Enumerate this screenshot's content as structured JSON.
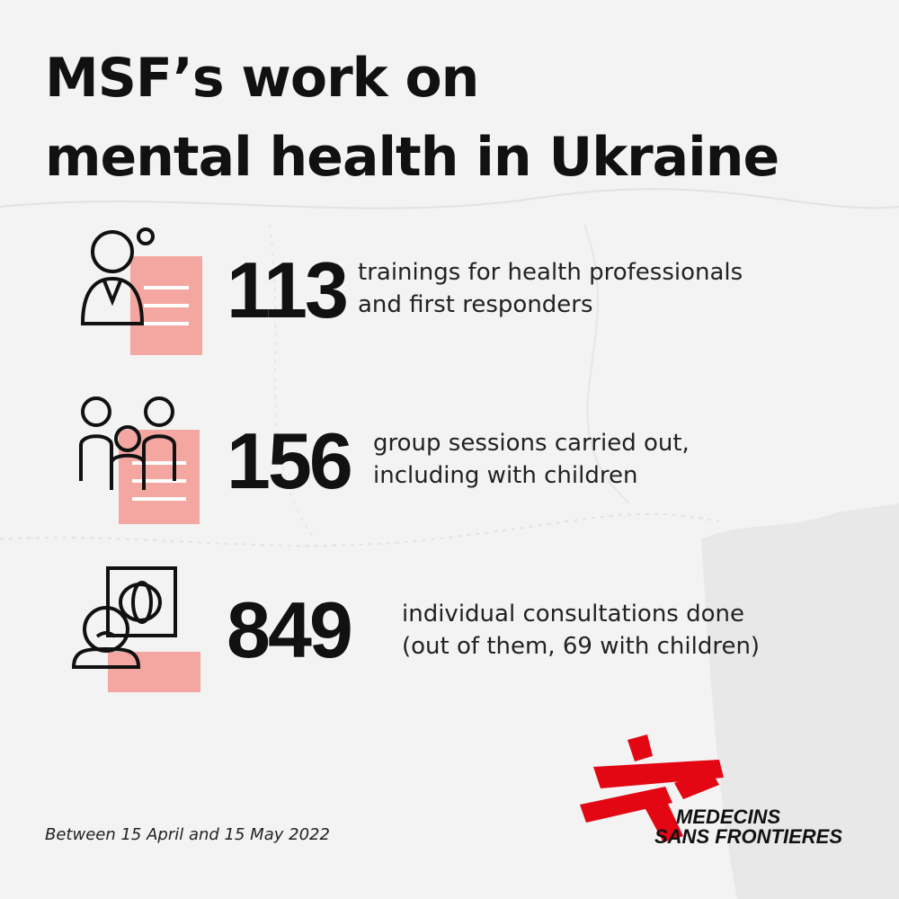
{
  "title": [
    "MSF’s work on",
    "mental health in Ukraine"
  ],
  "stats": [
    {
      "number": 113,
      "description": [
        "trainings for health professionals",
        "and first responders"
      ]
    },
    {
      "number": 156,
      "description": [
        "group sessions carried out,",
        "including with children"
      ]
    },
    {
      "number": 849,
      "description": [
        "individual consultations done",
        "(out of them, 69 with children)"
      ]
    }
  ],
  "note": "Between 15 April and 15 May 2022",
  "logo": [
    "MEDECINS",
    "SANS FRONTIERES"
  ]
}
